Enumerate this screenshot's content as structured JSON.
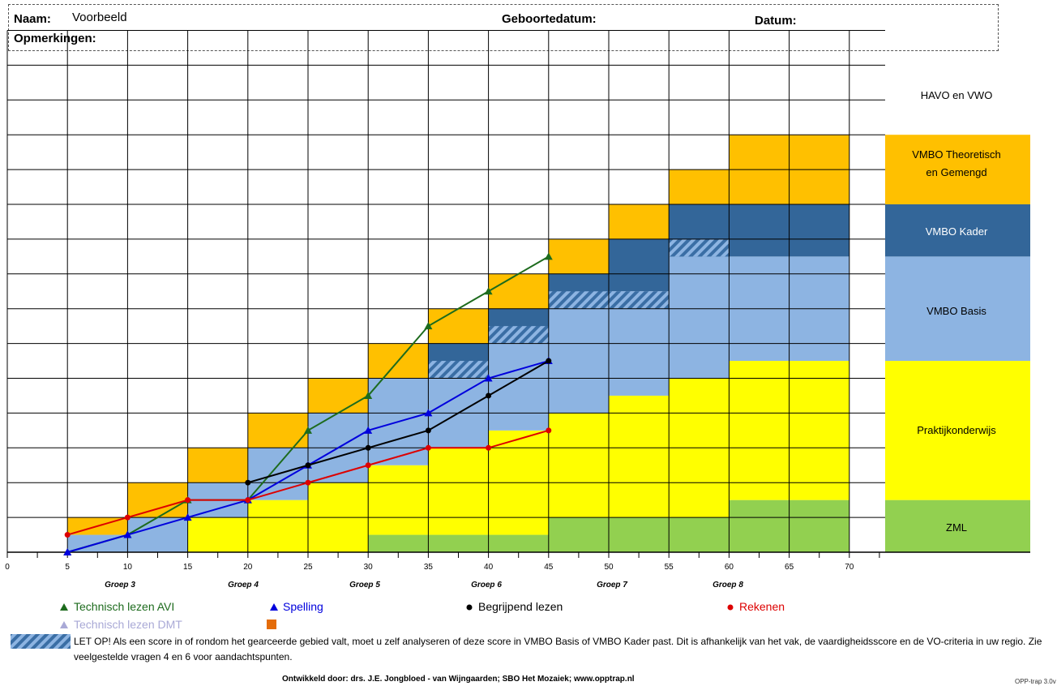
{
  "header": {
    "naam_label": "Naam:",
    "naam_value": "Voorbeeld",
    "geboortedatum_label": "Geboortedatum:",
    "datum_label": "Datum:",
    "opmerkingen_label": "Opmerkingen:"
  },
  "colors": {
    "orange": "#FFC000",
    "dark_blue": "#336699",
    "light_blue": "#8DB4E2",
    "yellow": "#FFFF00",
    "green": "#92D050",
    "avi": "#1D6B1D",
    "spelling": "#0000DD",
    "begrijpend": "#000000",
    "rekenen": "#DD0000",
    "dmt": "#A9A9D6",
    "orange_marker": "#E46C0A"
  },
  "chart_data": {
    "type": "line",
    "x_ticks": [
      0,
      5,
      10,
      15,
      20,
      25,
      30,
      35,
      40,
      45,
      50,
      55,
      60,
      65,
      70
    ],
    "y_range": [
      0,
      15
    ],
    "groepen": [
      "Groep 3",
      "Groep 4",
      "Groep 5",
      "Groep 6",
      "Groep 7",
      "Groep 8"
    ],
    "levels": [
      "HAVO en VWO",
      "VMBO Theoretisch en Gemengd",
      "VMBO Kader",
      "VMBO Basis",
      "Praktijkonderwijs",
      "ZML"
    ],
    "series": [
      {
        "name": "Technisch lezen AVI",
        "marker": "triangle",
        "color": "#1D6B1D",
        "x": [
          5,
          10,
          15,
          20,
          25,
          30,
          35,
          40,
          45
        ],
        "y": [
          0,
          0.5,
          1.5,
          1.5,
          3.5,
          4.5,
          6.5,
          7.5,
          8.5
        ]
      },
      {
        "name": "Spelling",
        "marker": "triangle",
        "color": "#0000DD",
        "x": [
          5,
          10,
          15,
          20,
          25,
          30,
          35,
          40,
          45
        ],
        "y": [
          0,
          0.5,
          1,
          1.5,
          2.5,
          3.5,
          4,
          5,
          5.5
        ]
      },
      {
        "name": "Begrijpend lezen",
        "marker": "circle",
        "color": "#000000",
        "x": [
          20,
          25,
          30,
          35,
          40,
          45
        ],
        "y": [
          2,
          2.5,
          3,
          3.5,
          4.5,
          5.5
        ]
      },
      {
        "name": "Rekenen",
        "marker": "circle",
        "color": "#DD0000",
        "x": [
          5,
          10,
          15,
          20,
          25,
          30,
          35,
          40,
          45
        ],
        "y": [
          0.5,
          1,
          1.5,
          1.5,
          2,
          2.5,
          3,
          3,
          3.5
        ]
      }
    ]
  },
  "legend": {
    "avi": "Technisch lezen AVI",
    "spelling": "Spelling",
    "begrijpend": "Begrijpend lezen",
    "rekenen": "Rekenen",
    "dmt": "Technisch lezen DMT"
  },
  "note": "LET OP! Als een score in of rondom het gearceerde gebied valt, moet u zelf analyseren of deze score in VMBO Basis of VMBO Kader past. Dit is afhankelijk van het vak, de vaardigheidsscore en de VO-criteria in uw regio. Zie veelgestelde vragen 4 en 6 voor aandachtspunten.",
  "footer": "Ontwikkeld door: drs. J.E. Jongbloed - van Wijngaarden; SBO Het Mozaiek;  www.opptrap.nl",
  "version": "OPP-trap 3.0v"
}
